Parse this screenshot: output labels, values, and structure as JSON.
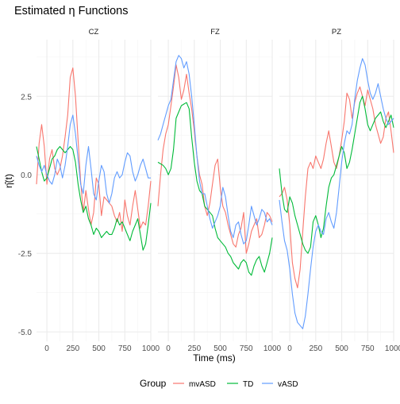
{
  "title": "Estimated η Functions",
  "colors": {
    "mvASD": "#F8766D",
    "TD": "#00BA38",
    "vASD": "#619CFF",
    "grid_major": "#EBEBEB",
    "grid_minor": "#F4F4F4",
    "text": "#4D4D4D"
  },
  "chart_data": {
    "type": "line",
    "title": "Estimated η Functions",
    "xlabel": "Time (ms)",
    "ylabel": "η̂(t)",
    "x_ticks": [
      0,
      250,
      500,
      750,
      1000
    ],
    "y_ticks": [
      -5.0,
      -2.5,
      0.0,
      2.5
    ],
    "y_tick_labels": [
      "-5.0",
      "-2.5",
      "0.0",
      "2.5"
    ],
    "xlim": [
      -100,
      1000
    ],
    "ylim": [
      -5.3,
      4.3
    ],
    "grid": true,
    "legend": {
      "title": "Group",
      "position": "bottom",
      "entries": [
        "mvASD",
        "TD",
        "vASD"
      ]
    },
    "panels": [
      {
        "name": "CZ",
        "series": [
          {
            "name": "mvASD",
            "x": [
              -100,
              -75,
              -50,
              -25,
              0,
              25,
              50,
              75,
              100,
              125,
              150,
              175,
              200,
              225,
              250,
              275,
              300,
              325,
              350,
              375,
              400,
              425,
              450,
              475,
              500,
              525,
              550,
              575,
              600,
              625,
              650,
              675,
              700,
              725,
              750,
              775,
              800,
              825,
              850,
              875,
              900,
              925,
              950,
              975,
              1000
            ],
            "y": [
              -0.3,
              1.0,
              1.6,
              0.9,
              -0.3,
              0.5,
              0.8,
              0.2,
              0.0,
              0.2,
              0.6,
              1.2,
              1.9,
              3.1,
              3.4,
              2.5,
              1.1,
              -0.2,
              -1.2,
              -0.5,
              -1.1,
              -1.6,
              -1.2,
              -0.1,
              -0.3,
              -1.3,
              -0.7,
              -0.8,
              -0.9,
              -1.0,
              -1.3,
              -1.5,
              -1.2,
              -1.8,
              -0.8,
              -1.3,
              -1.6,
              -1.0,
              -0.5,
              -1.1,
              -1.7,
              -1.5,
              -1.6,
              -1.0,
              -0.2
            ]
          },
          {
            "name": "TD",
            "x": [
              -100,
              -75,
              -50,
              -25,
              0,
              25,
              50,
              75,
              100,
              125,
              150,
              175,
              200,
              225,
              250,
              275,
              300,
              325,
              350,
              375,
              400,
              425,
              450,
              475,
              500,
              525,
              550,
              575,
              600,
              625,
              650,
              675,
              700,
              725,
              750,
              775,
              800,
              825,
              850,
              875,
              900,
              925,
              950,
              975,
              1000
            ],
            "y": [
              0.9,
              0.5,
              0.1,
              -0.2,
              -0.1,
              0.2,
              0.5,
              0.6,
              0.8,
              0.9,
              0.8,
              0.7,
              0.8,
              0.9,
              0.8,
              0.4,
              -0.3,
              -0.8,
              -1.2,
              -1.0,
              -1.4,
              -1.6,
              -1.9,
              -1.7,
              -1.8,
              -2.0,
              -1.9,
              -1.8,
              -1.9,
              -1.9,
              -1.7,
              -1.4,
              -1.6,
              -1.5,
              -1.7,
              -1.9,
              -2.1,
              -1.8,
              -1.6,
              -1.4,
              -1.9,
              -2.4,
              -2.2,
              -1.6,
              -0.9
            ]
          },
          {
            "name": "vASD",
            "x": [
              -100,
              -75,
              -50,
              -25,
              0,
              25,
              50,
              75,
              100,
              125,
              150,
              175,
              200,
              225,
              250,
              275,
              300,
              325,
              350,
              375,
              400,
              425,
              450,
              475,
              500,
              525,
              550,
              575,
              600,
              625,
              650,
              675,
              700,
              725,
              750,
              775,
              800,
              825,
              850,
              875,
              900,
              925,
              950,
              975,
              1000
            ],
            "y": [
              0.6,
              0.3,
              0.1,
              0.3,
              0.0,
              -0.2,
              -0.3,
              0.0,
              0.5,
              0.3,
              -0.1,
              0.3,
              0.9,
              1.6,
              1.9,
              1.3,
              0.5,
              -0.3,
              -0.6,
              0.3,
              0.9,
              0.2,
              -0.6,
              -0.8,
              -0.2,
              0.3,
              0.1,
              -0.6,
              -0.9,
              -0.6,
              -0.1,
              0.1,
              -0.1,
              0.0,
              0.4,
              0.7,
              0.6,
              0.1,
              -0.2,
              0.0,
              0.3,
              0.5,
              0.2,
              -0.1,
              -0.1
            ]
          }
        ]
      },
      {
        "name": "FZ",
        "series": [
          {
            "name": "mvASD",
            "x": [
              -100,
              -75,
              -50,
              -25,
              0,
              25,
              50,
              75,
              100,
              125,
              150,
              175,
              200,
              225,
              250,
              275,
              300,
              325,
              350,
              375,
              400,
              425,
              450,
              475,
              500,
              525,
              550,
              575,
              600,
              625,
              650,
              675,
              700,
              725,
              750,
              775,
              800,
              825,
              850,
              875,
              900,
              925,
              950,
              975,
              1000
            ],
            "y": [
              -1.0,
              0.0,
              0.8,
              1.3,
              1.6,
              2.2,
              2.8,
              3.5,
              3.1,
              2.4,
              2.7,
              3.2,
              2.6,
              2.1,
              1.4,
              0.6,
              0.0,
              -0.3,
              -1.0,
              -1.3,
              -0.9,
              -0.3,
              0.3,
              0.5,
              -0.4,
              -1.0,
              -1.2,
              -1.6,
              -1.9,
              -2.2,
              -2.3,
              -1.9,
              -1.7,
              -1.2,
              -2.5,
              -2.2,
              -1.8,
              -1.6,
              -1.4,
              -2.0,
              -1.9,
              -1.6,
              -1.2,
              -1.3,
              -1.5
            ]
          },
          {
            "name": "TD",
            "x": [
              -100,
              -75,
              -50,
              -25,
              0,
              25,
              50,
              75,
              100,
              125,
              150,
              175,
              200,
              225,
              250,
              275,
              300,
              325,
              350,
              375,
              400,
              425,
              450,
              475,
              500,
              525,
              550,
              575,
              600,
              625,
              650,
              675,
              700,
              725,
              750,
              775,
              800,
              825,
              850,
              875,
              900,
              925,
              950,
              975,
              1000
            ],
            "y": [
              0.4,
              0.35,
              0.3,
              0.2,
              0.0,
              0.2,
              0.8,
              1.8,
              2.0,
              2.2,
              2.25,
              2.3,
              2.1,
              1.2,
              0.4,
              -0.2,
              -0.5,
              -0.6,
              -1.0,
              -1.1,
              -1.2,
              -1.3,
              -1.7,
              -2.0,
              -2.1,
              -2.2,
              -2.3,
              -2.5,
              -2.6,
              -2.8,
              -2.9,
              -3.0,
              -2.8,
              -2.7,
              -2.8,
              -3.1,
              -3.2,
              -2.9,
              -2.7,
              -2.6,
              -2.9,
              -3.1,
              -2.8,
              -2.5,
              -2.0
            ]
          },
          {
            "name": "vASD",
            "x": [
              -100,
              -75,
              -50,
              -25,
              0,
              25,
              50,
              75,
              100,
              125,
              150,
              175,
              200,
              225,
              250,
              275,
              300,
              325,
              350,
              375,
              400,
              425,
              450,
              475,
              500,
              525,
              550,
              575,
              600,
              625,
              650,
              675,
              700,
              725,
              750,
              775,
              800,
              825,
              850,
              875,
              900,
              925,
              950,
              975,
              1000
            ],
            "y": [
              1.1,
              1.3,
              1.6,
              1.9,
              2.2,
              2.4,
              3.0,
              3.6,
              3.8,
              3.7,
              3.4,
              3.6,
              3.2,
              2.5,
              1.6,
              0.6,
              -0.2,
              -0.6,
              -0.6,
              -1.0,
              -1.4,
              -1.7,
              -1.5,
              -1.3,
              -1.0,
              -0.4,
              -0.7,
              -1.3,
              -1.8,
              -2.0,
              -1.6,
              -1.5,
              -1.9,
              -2.2,
              -2.1,
              -1.6,
              -1.0,
              -1.3,
              -1.6,
              -1.4,
              -1.1,
              -1.2,
              -1.5,
              -1.4,
              -1.6
            ]
          }
        ]
      },
      {
        "name": "PZ",
        "series": [
          {
            "name": "mvASD",
            "x": [
              -100,
              -75,
              -50,
              -25,
              0,
              25,
              50,
              75,
              100,
              125,
              150,
              175,
              200,
              225,
              250,
              275,
              300,
              325,
              350,
              375,
              400,
              425,
              450,
              475,
              500,
              525,
              550,
              575,
              600,
              625,
              650,
              675,
              700,
              725,
              750,
              775,
              800,
              825,
              850,
              875,
              900,
              925,
              950,
              975,
              1000
            ],
            "y": [
              -0.7,
              -0.6,
              -0.4,
              -0.8,
              -1.6,
              -2.8,
              -3.3,
              -3.6,
              -3.0,
              -1.8,
              -0.7,
              0.2,
              0.4,
              0.2,
              0.6,
              0.4,
              0.2,
              0.5,
              1.0,
              1.4,
              0.9,
              0.4,
              0.2,
              0.6,
              1.1,
              1.7,
              2.6,
              2.4,
              1.8,
              2.3,
              2.6,
              2.8,
              2.5,
              2.2,
              2.7,
              2.4,
              2.1,
              1.6,
              1.3,
              1.0,
              1.2,
              1.8,
              2.0,
              1.4,
              0.7
            ]
          },
          {
            "name": "TD",
            "x": [
              -100,
              -75,
              -50,
              -25,
              0,
              25,
              50,
              75,
              100,
              125,
              150,
              175,
              200,
              225,
              250,
              275,
              300,
              325,
              350,
              375,
              400,
              425,
              450,
              475,
              500,
              525,
              550,
              575,
              600,
              625,
              650,
              675,
              700,
              725,
              750,
              775,
              800,
              825,
              850,
              875,
              900,
              925,
              950,
              975,
              1000
            ],
            "y": [
              0.2,
              -0.6,
              -1.1,
              -1.2,
              -0.7,
              -0.9,
              -1.3,
              -1.6,
              -1.9,
              -2.2,
              -2.4,
              -2.5,
              -2.3,
              -1.5,
              -1.3,
              -1.6,
              -2.0,
              -1.7,
              -1.0,
              -0.4,
              -0.1,
              0.0,
              0.3,
              0.6,
              0.9,
              0.7,
              0.2,
              0.4,
              0.8,
              1.3,
              1.8,
              2.3,
              2.5,
              2.1,
              1.6,
              1.4,
              1.6,
              1.8,
              1.9,
              2.0,
              1.7,
              1.5,
              1.7,
              1.9,
              1.5
            ]
          },
          {
            "name": "vASD",
            "x": [
              -100,
              -75,
              -50,
              -25,
              0,
              25,
              50,
              75,
              100,
              125,
              150,
              175,
              200,
              225,
              250,
              275,
              300,
              325,
              350,
              375,
              400,
              425,
              450,
              475,
              500,
              525,
              550,
              575,
              600,
              625,
              650,
              675,
              700,
              725,
              750,
              775,
              800,
              825,
              850,
              875,
              900,
              925,
              950,
              975,
              1000
            ],
            "y": [
              -0.8,
              -1.5,
              -2.1,
              -2.4,
              -3.0,
              -3.8,
              -4.4,
              -4.7,
              -4.8,
              -4.9,
              -4.5,
              -3.8,
              -3.0,
              -2.3,
              -1.8,
              -1.6,
              -1.8,
              -1.9,
              -1.4,
              -1.2,
              -1.5,
              -1.7,
              -1.2,
              -0.4,
              0.4,
              1.0,
              1.4,
              1.3,
              1.6,
              2.4,
              3.0,
              3.4,
              3.7,
              3.5,
              3.0,
              2.6,
              2.4,
              2.6,
              2.9,
              2.5,
              2.1,
              1.8,
              1.6,
              1.7,
              1.8
            ]
          }
        ]
      }
    ]
  }
}
